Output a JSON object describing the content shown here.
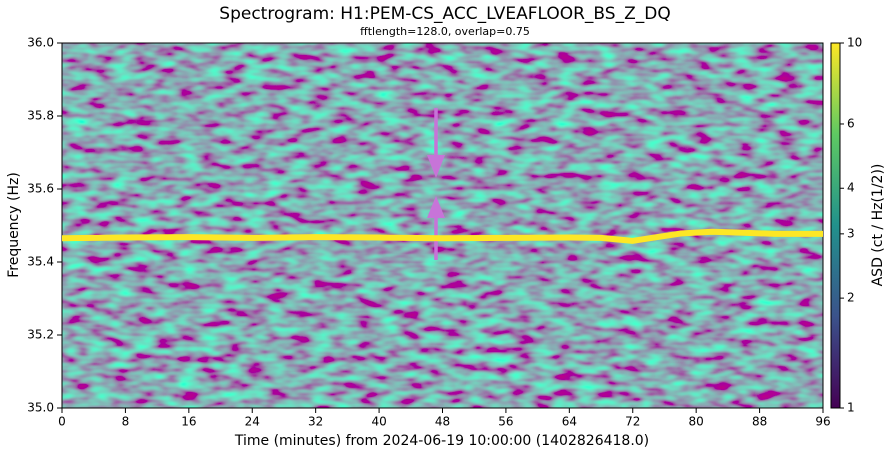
{
  "chart_data": {
    "type": "line",
    "title": "Spectrogram: H1:PEM-CS_ACC_LVEAFLOOR_BS_Z_DQ",
    "subtitle": "fftlength=128.0, overlap=0.75",
    "x_label": "Time (minutes) from 2024-06-19 10:00:00 (1402826418.0)",
    "y_label": "Frequency (Hz)",
    "colorbar_label": "ASD (ct / Hz(1/2))",
    "x": [
      0,
      8,
      16,
      24,
      32,
      40,
      48,
      56,
      64,
      68,
      70,
      72,
      75,
      78,
      82,
      86,
      90,
      96
    ],
    "series": [
      {
        "color": "#fde725",
        "values": [
          35.465,
          35.467,
          35.468,
          35.466,
          35.468,
          35.467,
          35.465,
          35.466,
          35.467,
          35.466,
          35.462,
          35.458,
          35.468,
          35.478,
          35.483,
          35.48,
          35.477,
          35.477
        ]
      }
    ],
    "xlim": [
      0,
      96
    ],
    "xticks": [
      0,
      8,
      16,
      24,
      32,
      40,
      48,
      56,
      64,
      72,
      80,
      88,
      96
    ],
    "ylim": [
      35.0,
      36.0
    ],
    "yticks": [
      {
        "value": 35.0,
        "label": "35.0"
      },
      35.2,
      35.4,
      35.6,
      35.8,
      {
        "value": 36.0,
        "label": "36.0"
      }
    ],
    "clim": [
      1,
      10
    ],
    "cticks": [
      1,
      2,
      3,
      4,
      6,
      10
    ],
    "color_scale": "log"
  }
}
